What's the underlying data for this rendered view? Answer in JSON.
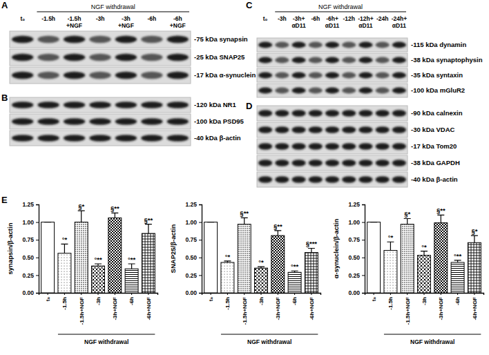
{
  "blots": [
    {
      "label": "A",
      "header": "NGF withdrawal",
      "lanes": [
        "t₀",
        "-1.5h",
        "-1.5h +NGF",
        "-3h",
        "-3h +NGF",
        "-6h",
        "-6h +NGF"
      ],
      "rows": [
        {
          "label": "-75 kDa synapsin"
        },
        {
          "label": "-25 kDa SNAP25"
        },
        {
          "label": "-17 kDa α-synuclein"
        }
      ]
    },
    {
      "label": "B",
      "rows": [
        {
          "label": "-120 kDa NR1"
        },
        {
          "label": "-100 kDa PSD95"
        },
        {
          "label": "-40 kDa β-actin"
        }
      ]
    },
    {
      "label": "C",
      "header": "NGF withdrawal",
      "lanes": [
        "t₀",
        "-3h",
        "-3h+ αD11",
        "-6h",
        "-6h+ αD11",
        "-12h",
        "-12h+ αD11",
        "-24h",
        "-24h+ αD11"
      ],
      "rows": [
        {
          "label": "-115 kDa dynamin"
        },
        {
          "label": "-38 kDa synaptophysin"
        },
        {
          "label": "-35 kDa syntaxin"
        },
        {
          "label": "-100 kDa mGluR2"
        }
      ]
    },
    {
      "label": "D",
      "rows": [
        {
          "label": "-90 kDa calnexin"
        },
        {
          "label": "-30 kDa VDAC"
        },
        {
          "label": "-17 kDa Tom20"
        },
        {
          "label": "-38 kDa GAPDH"
        },
        {
          "label": "-40 kDa β-actin"
        }
      ]
    }
  ],
  "chart_panel_label": "E",
  "chart_data": [
    {
      "type": "bar",
      "ylabel": "synapsin/β-actin",
      "xlabel": "NGF withdrawal",
      "categories": [
        "t₀",
        "-1.5h",
        "-1.5h+NGF",
        "-3h",
        "-3h+NGF",
        "-6h",
        "-6h+NGF"
      ],
      "values": [
        1.0,
        0.56,
        1.0,
        0.38,
        1.06,
        0.34,
        0.84
      ],
      "errors": [
        0,
        0.13,
        0.16,
        0.03,
        0.07,
        0.07,
        0.13
      ],
      "annotations": [
        null,
        "°*",
        "§*",
        "°**",
        "§**",
        "°**",
        "§**"
      ],
      "ylim": [
        0,
        1.25
      ],
      "yticks": [
        {
          "value": 0,
          "label": "0.00"
        },
        {
          "value": 0.25,
          "label": "0.25"
        },
        {
          "value": 0.5,
          "label": "0.50"
        },
        {
          "value": 0.75,
          "label": "0.75"
        },
        {
          "value": 1,
          "label": "1.00"
        },
        {
          "value": 1.25,
          "label": "1.25"
        }
      ]
    },
    {
      "type": "bar",
      "ylabel": "SNAP25/β-actin",
      "xlabel": "NGF withdrawal",
      "categories": [
        "t₀",
        "-1.5h",
        "-1.5h+NGF",
        "-3h",
        "-3h+NGF",
        "-6h",
        "-6h+NGF"
      ],
      "values": [
        1.0,
        0.43,
        0.97,
        0.35,
        0.81,
        0.29,
        0.57
      ],
      "errors": [
        0,
        0.02,
        0.09,
        0.02,
        0.07,
        0.02,
        0.06
      ],
      "annotations": [
        null,
        "°*",
        "§**",
        "°*",
        "§**",
        "°**",
        "§***"
      ],
      "ylim": [
        0,
        1.25
      ],
      "yticks": [
        {
          "value": 0,
          "label": "0.00"
        },
        {
          "value": 0.25,
          "label": "0.25"
        },
        {
          "value": 0.5,
          "label": "0.50"
        },
        {
          "value": 0.75,
          "label": "0.75"
        },
        {
          "value": 1,
          "label": "1.00"
        },
        {
          "value": 1.25,
          "label": "1.25"
        }
      ]
    },
    {
      "type": "bar",
      "ylabel": "α-synuclein/β-actin",
      "xlabel": "NGF withdrawal",
      "categories": [
        "t₀",
        "-1.5h",
        "-1.5h+NGF",
        "-3h",
        "-3h+NGF",
        "-6h",
        "-6h+NGF"
      ],
      "values": [
        1.0,
        0.6,
        0.97,
        0.53,
        0.99,
        0.43,
        0.71
      ],
      "errors": [
        0,
        0.12,
        0.08,
        0.06,
        0.11,
        0.03,
        0.1
      ],
      "annotations": [
        null,
        "°*",
        "§*",
        "°*",
        "§**",
        "°**",
        "§*"
      ],
      "ylim": [
        0,
        1.25
      ],
      "yticks": [
        {
          "value": 0,
          "label": "0.00"
        },
        {
          "value": 0.25,
          "label": "0.25"
        },
        {
          "value": 0.5,
          "label": "0.50"
        },
        {
          "value": 0.75,
          "label": "0.75"
        },
        {
          "value": 1,
          "label": "1.00"
        },
        {
          "value": 1.25,
          "label": "1.25"
        }
      ]
    }
  ]
}
